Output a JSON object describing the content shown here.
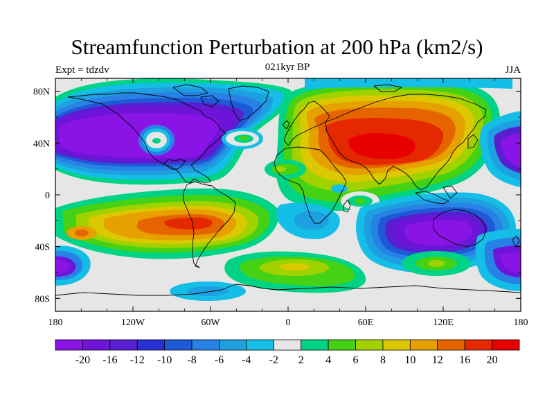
{
  "title": "Streamfunction Perturbation at 200 hPa (km2/s)",
  "left_label": "Expt = tdzdv",
  "center_label": "021kyr BP",
  "right_label": "JJA",
  "lat_ticks": [
    "80N",
    "40N",
    "0",
    "40S",
    "80S"
  ],
  "lon_ticks": [
    "180",
    "120W",
    "60W",
    "0",
    "60E",
    "120E",
    "180"
  ],
  "colorbar": {
    "labels": [
      "-20",
      "-16",
      "-12",
      "-10",
      "-8",
      "-6",
      "-4",
      "-2",
      "2",
      "4",
      "6",
      "8",
      "10",
      "12",
      "16",
      "20"
    ],
    "colors": [
      "#8a14e6",
      "#6e14d8",
      "#5a1ed2",
      "#2832d4",
      "#1e5ad6",
      "#2882e6",
      "#1ea0e0",
      "#14bee6",
      "#e6e6e6",
      "#00d286",
      "#46d214",
      "#a0d200",
      "#dcc800",
      "#e6a000",
      "#e66400",
      "#e62800",
      "#e60000"
    ]
  }
}
